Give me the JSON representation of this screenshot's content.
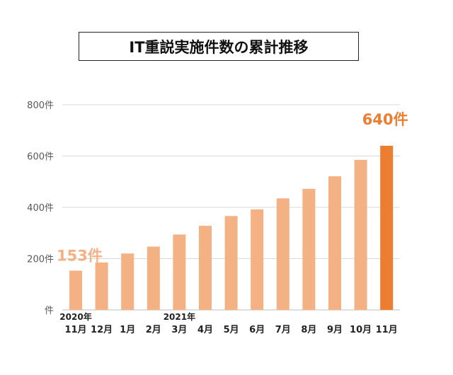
{
  "title": "IT重説実施件数の累計推移",
  "colors": {
    "bar": "#F4B183",
    "highlight": "#ED7D31",
    "first_label": "#F4B183",
    "grid": "#D9D9D9"
  },
  "chart_data": {
    "type": "bar",
    "title": "IT重説実施件数の累計推移",
    "categories": [
      "11月",
      "12月",
      "1月",
      "2月",
      "3月",
      "4月",
      "5月",
      "6月",
      "7月",
      "8月",
      "9月",
      "10月",
      "11月"
    ],
    "year_labels": [
      {
        "index": 0,
        "label": "2020年"
      },
      {
        "index": 4,
        "label": "2021年"
      }
    ],
    "values": [
      153,
      185,
      220,
      247,
      294,
      328,
      366,
      392,
      435,
      472,
      521,
      585,
      640
    ],
    "highlight_index": 12,
    "y_ticks": [
      {
        "value": 0,
        "label": "件"
      },
      {
        "value": 200,
        "label": "200件"
      },
      {
        "value": 400,
        "label": "400件"
      },
      {
        "value": 600,
        "label": "600件"
      },
      {
        "value": 800,
        "label": "800件"
      }
    ],
    "ylim": [
      0,
      800
    ],
    "grid": true,
    "annotations": [
      {
        "index": 0,
        "text": "153件"
      },
      {
        "index": 12,
        "text": "640件"
      }
    ]
  }
}
